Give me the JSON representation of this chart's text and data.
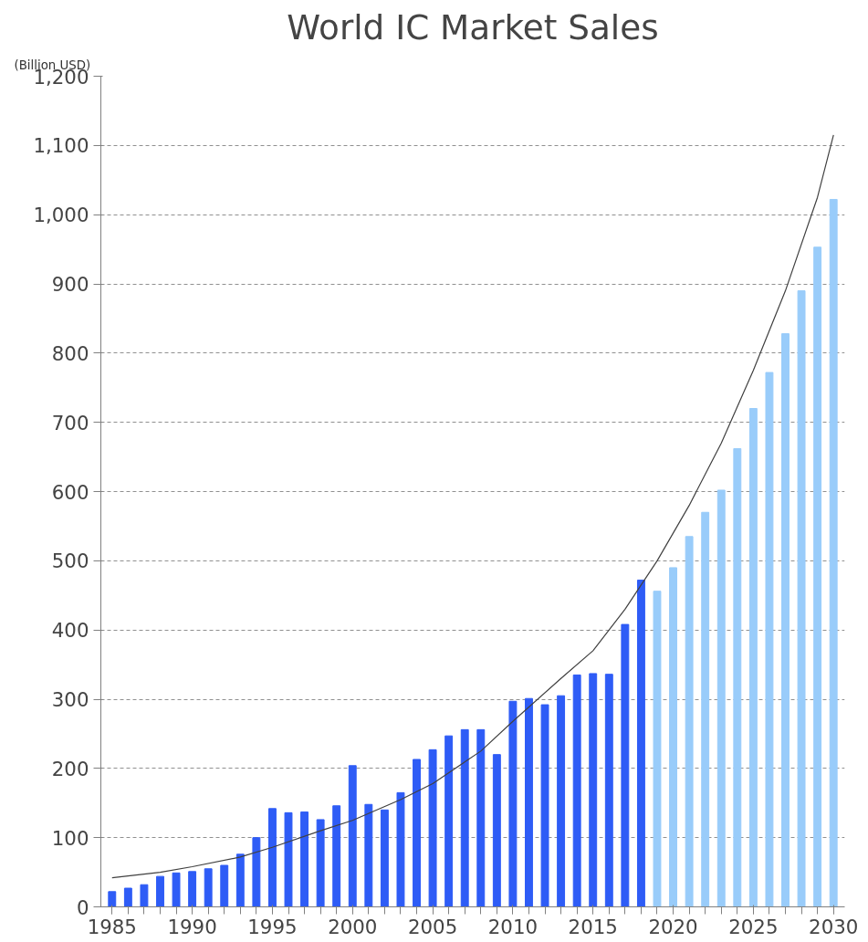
{
  "chart_data": {
    "type": "bar",
    "title": "World IC Market Sales",
    "ylabel": "(Billion USD)",
    "xlim": [
      1984.3,
      2030.7
    ],
    "xticks": [
      1985,
      1990,
      1995,
      2000,
      2005,
      2010,
      2015,
      2020,
      2025,
      2030
    ],
    "ylim": [
      0,
      1200
    ],
    "yticks": [
      {
        "value": 0,
        "label": "0"
      },
      {
        "value": 100,
        "label": "100"
      },
      {
        "value": 200,
        "label": "200"
      },
      {
        "value": 300,
        "label": "300"
      },
      {
        "value": 400,
        "label": "400"
      },
      {
        "value": 500,
        "label": "500"
      },
      {
        "value": 600,
        "label": "600"
      },
      {
        "value": 700,
        "label": "700"
      },
      {
        "value": 800,
        "label": "800"
      },
      {
        "value": 900,
        "label": "900"
      },
      {
        "value": 1000,
        "label": "1,000"
      },
      {
        "value": 1100,
        "label": "1,100"
      },
      {
        "value": 1200,
        "label": "1,200"
      }
    ],
    "grid": "y",
    "series": [
      {
        "color": "#2e5cf6",
        "x": [
          1985,
          1986,
          1987,
          1988,
          1989,
          1990,
          1991,
          1992,
          1993,
          1994,
          1995,
          1996,
          1997,
          1998,
          1999,
          2000,
          2001,
          2002,
          2003,
          2004,
          2005,
          2006,
          2007,
          2008,
          2009,
          2010,
          2011,
          2012,
          2013,
          2014,
          2015,
          2016,
          2017,
          2018
        ],
        "values": [
          22,
          27,
          32,
          44,
          49,
          51,
          55,
          60,
          76,
          100,
          142,
          136,
          137,
          126,
          146,
          204,
          148,
          140,
          165,
          213,
          227,
          247,
          256,
          256,
          220,
          297,
          301,
          292,
          305,
          335,
          337,
          336,
          408,
          472
        ]
      },
      {
        "color": "#99ccfa",
        "x": [
          2019,
          2020,
          2021,
          2022,
          2023,
          2024,
          2025,
          2026,
          2027,
          2028,
          2029,
          2030
        ],
        "values": [
          456,
          490,
          535,
          570,
          602,
          662,
          720,
          772,
          828,
          890,
          953,
          1022
        ]
      },
      {
        "type": "line",
        "color": "#404040",
        "x": [
          1985,
          1988,
          1990,
          1993,
          1995,
          1998,
          2000,
          2003,
          2005,
          2008,
          2010,
          2013,
          2015,
          2017,
          2019,
          2021,
          2023,
          2025,
          2027,
          2029,
          2030
        ],
        "values": [
          42,
          50,
          58,
          72,
          86,
          110,
          125,
          155,
          178,
          225,
          268,
          330,
          370,
          430,
          500,
          580,
          670,
          775,
          890,
          1025,
          1115
        ]
      }
    ]
  }
}
